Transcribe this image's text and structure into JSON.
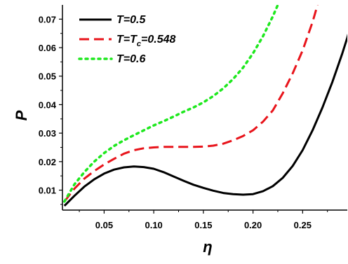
{
  "chart_data": {
    "type": "line",
    "xlabel": "η",
    "ylabel": "P",
    "xlim": [
      0.008,
      0.295
    ],
    "ylim": [
      0.003,
      0.075
    ],
    "x_ticks": [
      {
        "value": 0.05,
        "label": "0.05"
      },
      {
        "value": 0.1,
        "label": "0.10"
      },
      {
        "value": 0.15,
        "label": "0.15"
      },
      {
        "value": 0.2,
        "label": "0.20"
      },
      {
        "value": 0.25,
        "label": "0.25"
      }
    ],
    "y_ticks": [
      {
        "value": 0.01,
        "label": "0.01"
      },
      {
        "value": 0.02,
        "label": "0.02"
      },
      {
        "value": 0.03,
        "label": "0.03"
      },
      {
        "value": 0.04,
        "label": "0.04"
      },
      {
        "value": 0.05,
        "label": "0.05"
      },
      {
        "value": 0.06,
        "label": "0.06"
      },
      {
        "value": 0.07,
        "label": "0.07"
      }
    ],
    "legend_position": "top-left",
    "series": [
      {
        "name_parts": [
          "T=0.5"
        ],
        "color": "#000000",
        "style": "solid",
        "points": [
          [
            0.01,
            0.0045
          ],
          [
            0.02,
            0.008
          ],
          [
            0.03,
            0.0112
          ],
          [
            0.04,
            0.0138
          ],
          [
            0.05,
            0.0158
          ],
          [
            0.06,
            0.0172
          ],
          [
            0.07,
            0.018
          ],
          [
            0.08,
            0.0183
          ],
          [
            0.09,
            0.0181
          ],
          [
            0.1,
            0.0175
          ],
          [
            0.11,
            0.0163
          ],
          [
            0.12,
            0.0148
          ],
          [
            0.13,
            0.0133
          ],
          [
            0.14,
            0.0119
          ],
          [
            0.15,
            0.0108
          ],
          [
            0.16,
            0.0098
          ],
          [
            0.17,
            0.009
          ],
          [
            0.18,
            0.0086
          ],
          [
            0.19,
            0.0084
          ],
          [
            0.2,
            0.0086
          ],
          [
            0.21,
            0.0096
          ],
          [
            0.22,
            0.0114
          ],
          [
            0.23,
            0.0143
          ],
          [
            0.24,
            0.0185
          ],
          [
            0.25,
            0.024
          ],
          [
            0.26,
            0.031
          ],
          [
            0.27,
            0.039
          ],
          [
            0.28,
            0.048
          ],
          [
            0.29,
            0.058
          ],
          [
            0.295,
            0.0635
          ],
          [
            0.3,
            0.07
          ]
        ]
      },
      {
        "name_parts": [
          "T=T",
          "c",
          "=0.548"
        ],
        "color": "#e8141b",
        "style": "dashed",
        "points": [
          [
            0.01,
            0.006
          ],
          [
            0.02,
            0.0105
          ],
          [
            0.03,
            0.014
          ],
          [
            0.04,
            0.0167
          ],
          [
            0.05,
            0.019
          ],
          [
            0.06,
            0.021
          ],
          [
            0.07,
            0.0228
          ],
          [
            0.08,
            0.024
          ],
          [
            0.09,
            0.0247
          ],
          [
            0.1,
            0.025
          ],
          [
            0.11,
            0.0252
          ],
          [
            0.12,
            0.0252
          ],
          [
            0.13,
            0.0252
          ],
          [
            0.14,
            0.0252
          ],
          [
            0.15,
            0.0253
          ],
          [
            0.16,
            0.0256
          ],
          [
            0.17,
            0.0263
          ],
          [
            0.18,
            0.0275
          ],
          [
            0.19,
            0.029
          ],
          [
            0.2,
            0.031
          ],
          [
            0.21,
            0.034
          ],
          [
            0.22,
            0.038
          ],
          [
            0.23,
            0.044
          ],
          [
            0.24,
            0.051
          ],
          [
            0.25,
            0.059
          ],
          [
            0.26,
            0.069
          ],
          [
            0.265,
            0.075
          ]
        ]
      },
      {
        "name_parts": [
          "T=0.6"
        ],
        "color": "#1ee81e",
        "style": "dotted",
        "points": [
          [
            0.01,
            0.006
          ],
          [
            0.02,
            0.012
          ],
          [
            0.03,
            0.0163
          ],
          [
            0.04,
            0.02
          ],
          [
            0.05,
            0.023
          ],
          [
            0.06,
            0.0255
          ],
          [
            0.07,
            0.0275
          ],
          [
            0.08,
            0.0293
          ],
          [
            0.09,
            0.031
          ],
          [
            0.1,
            0.0327
          ],
          [
            0.11,
            0.0342
          ],
          [
            0.12,
            0.0358
          ],
          [
            0.13,
            0.0375
          ],
          [
            0.14,
            0.039
          ],
          [
            0.15,
            0.0408
          ],
          [
            0.16,
            0.043
          ],
          [
            0.17,
            0.0457
          ],
          [
            0.18,
            0.049
          ],
          [
            0.19,
            0.053
          ],
          [
            0.2,
            0.058
          ],
          [
            0.21,
            0.064
          ],
          [
            0.22,
            0.071
          ],
          [
            0.225,
            0.075
          ]
        ]
      }
    ]
  }
}
